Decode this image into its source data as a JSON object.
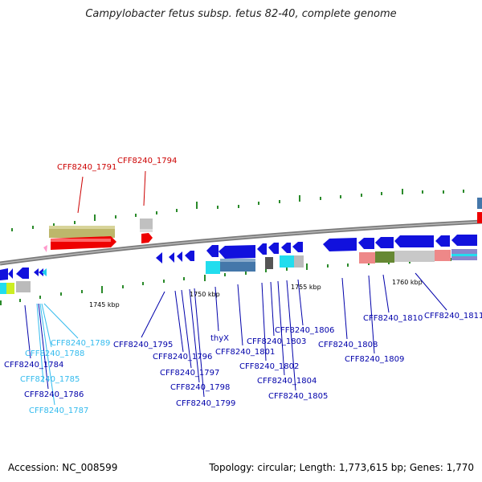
{
  "title": "Campylobacter fetus subsp. fetus 82-40, complete genome",
  "footer": {
    "accession": "Accession: NC_008599",
    "summary": "Topology: circular; Length: 1,773,615 bp; Genes: 1,770"
  },
  "colors": {
    "backbone": "#808080",
    "forward_label": "#cc0000",
    "reverse_label": "#0000aa",
    "cyan_label": "#33bbee"
  },
  "ticks": [
    "1745 kbp",
    "1750 kbp",
    "1755 kbp",
    "1760 kbp"
  ],
  "genes": [
    {
      "id": "g1791",
      "label": "CFF8240_1791",
      "color": "red"
    },
    {
      "id": "g1794",
      "label": "CFF8240_1794",
      "color": "red"
    },
    {
      "id": "g1784",
      "label": "CFF8240_1784",
      "color": "blue"
    },
    {
      "id": "g1785",
      "label": "CFF8240_1785",
      "color": "cyan"
    },
    {
      "id": "g1786",
      "label": "CFF8240_1786",
      "color": "blue"
    },
    {
      "id": "g1787",
      "label": "CFF8240_1787",
      "color": "cyan"
    },
    {
      "id": "g1788",
      "label": "CFF8240_1788",
      "color": "cyan"
    },
    {
      "id": "g1789",
      "label": "CFF8240_1789",
      "color": "cyan"
    },
    {
      "id": "g1795",
      "label": "CFF8240_1795",
      "color": "blue"
    },
    {
      "id": "g1796",
      "label": "CFF8240_1796",
      "color": "blue"
    },
    {
      "id": "g1797",
      "label": "CFF8240_1797",
      "color": "blue"
    },
    {
      "id": "g1798",
      "label": "CFF8240_1798",
      "color": "blue"
    },
    {
      "id": "g1799",
      "label": "CFF8240_1799",
      "color": "blue"
    },
    {
      "id": "thyX",
      "label": "thyX",
      "color": "blue"
    },
    {
      "id": "g1801",
      "label": "CFF8240_1801",
      "color": "blue"
    },
    {
      "id": "g1802",
      "label": "CFF8240_1802",
      "color": "blue"
    },
    {
      "id": "g1803",
      "label": "CFF8240_1803",
      "color": "blue"
    },
    {
      "id": "g1804",
      "label": "CFF8240_1804",
      "color": "blue"
    },
    {
      "id": "g1805",
      "label": "CFF8240_1805",
      "color": "blue"
    },
    {
      "id": "g1806",
      "label": "CFF8240_1806",
      "color": "blue"
    },
    {
      "id": "g1808",
      "label": "CFF8240_1808",
      "color": "blue"
    },
    {
      "id": "g1809",
      "label": "CFF8240_1809",
      "color": "blue"
    },
    {
      "id": "g1810",
      "label": "CFF8240_1810",
      "color": "blue"
    },
    {
      "id": "g1811",
      "label": "CFF8240_1811",
      "color": "blue"
    }
  ]
}
